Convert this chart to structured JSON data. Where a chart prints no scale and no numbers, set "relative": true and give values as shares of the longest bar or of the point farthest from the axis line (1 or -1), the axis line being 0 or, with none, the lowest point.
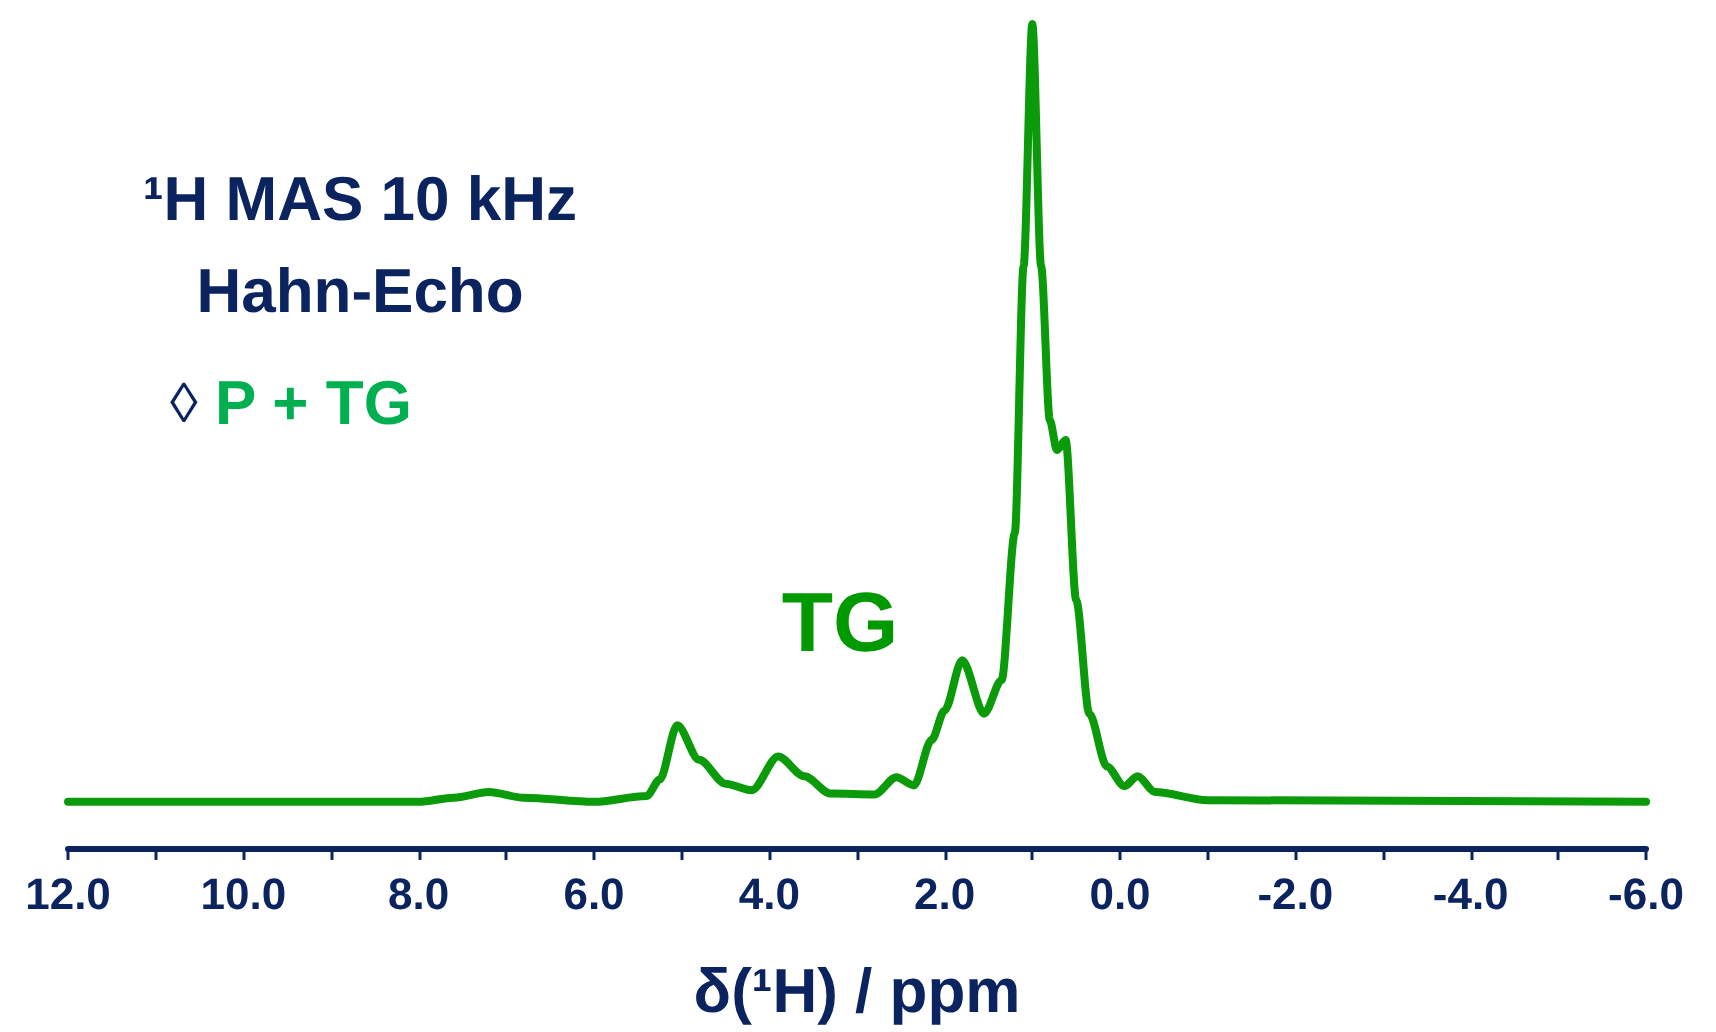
{
  "chart_data": {
    "type": "line",
    "relative": true,
    "xlabel": "δ(¹H) / ppm",
    "annotations": [
      "¹H MAS 10 kHz",
      "Hahn-Echo",
      "◊ P + TG",
      "TG"
    ],
    "xlim": [
      12,
      -6
    ],
    "xticks": [
      {
        "value": 12,
        "label": "12.0"
      },
      {
        "value": 11,
        "label": null
      },
      {
        "value": 10,
        "label": "10.0"
      },
      {
        "value": 9,
        "label": null
      },
      {
        "value": 8,
        "label": "8.0"
      },
      {
        "value": 7,
        "label": null
      },
      {
        "value": 6,
        "label": "6.0"
      },
      {
        "value": 5,
        "label": null
      },
      {
        "value": 4,
        "label": "4.0"
      },
      {
        "value": 3,
        "label": null
      },
      {
        "value": 2,
        "label": "2.0"
      },
      {
        "value": 1,
        "label": null
      },
      {
        "value": 0,
        "label": "0.0"
      },
      {
        "value": -1,
        "label": null
      },
      {
        "value": -2,
        "label": "-2.0"
      },
      {
        "value": -3,
        "label": null
      },
      {
        "value": -4,
        "label": "-4.0"
      },
      {
        "value": -5,
        "label": null
      },
      {
        "value": -6,
        "label": "-6.0"
      }
    ],
    "tick_labels": "x",
    "grid": false,
    "marker": "none",
    "line_style": "solid",
    "series": [
      {
        "color": "#0a9a0a",
        "x": [
          12,
          8,
          7.6,
          7.2,
          6.8,
          6,
          5.4,
          5.25,
          5.05,
          4.8,
          4.5,
          4.2,
          3.9,
          3.6,
          3.3,
          2.8,
          2.55,
          2.35,
          2.15,
          2,
          1.8,
          1.55,
          1.35,
          1.2,
          1.1,
          1,
          0.9,
          0.8,
          0.72,
          0.62,
          0.5,
          0.35,
          0.15,
          -0.05,
          -0.2,
          -0.4,
          -1,
          -6
        ],
        "values": [
          0.056,
          0.056,
          0.061,
          0.068,
          0.061,
          0.056,
          0.063,
          0.083,
          0.149,
          0.107,
          0.078,
          0.07,
          0.111,
          0.087,
          0.066,
          0.065,
          0.086,
          0.076,
          0.131,
          0.167,
          0.228,
          0.163,
          0.204,
          0.382,
          0.706,
          1,
          0.706,
          0.519,
          0.483,
          0.495,
          0.301,
          0.163,
          0.099,
          0.075,
          0.087,
          0.068,
          0.058,
          0.056
        ]
      }
    ]
  }
}
